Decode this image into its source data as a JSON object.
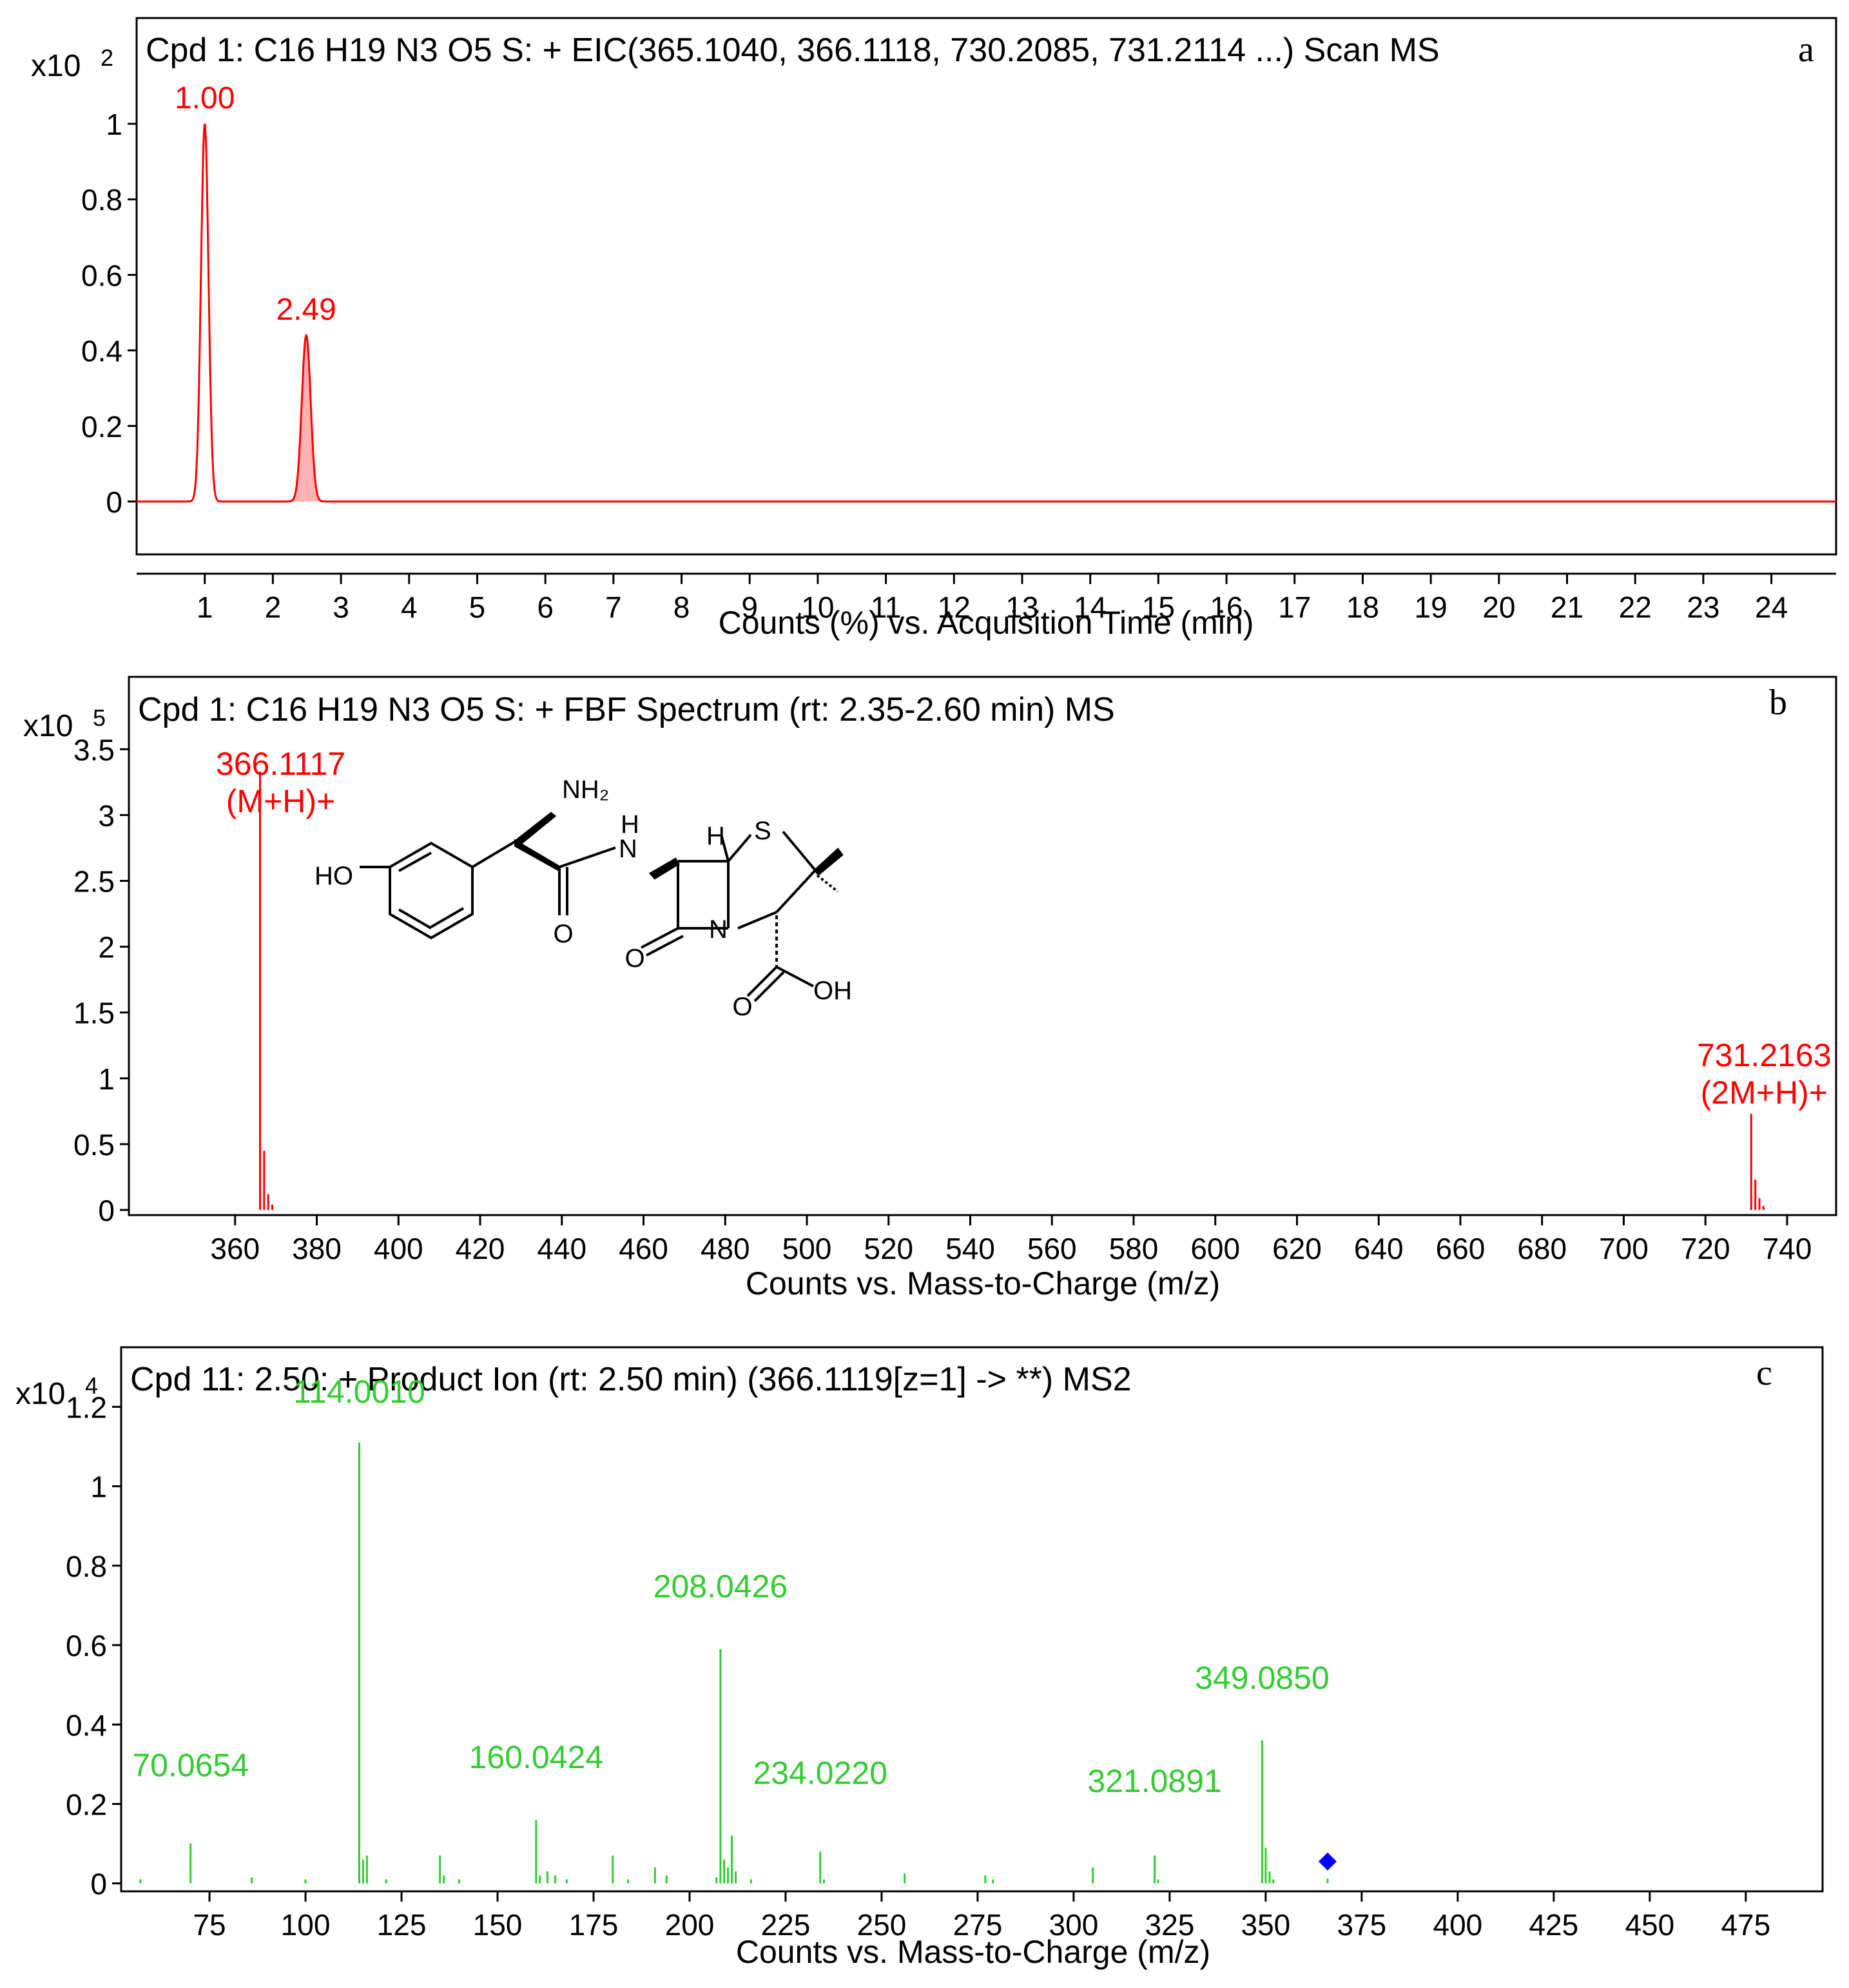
{
  "panels": [
    {
      "id": "a",
      "title": "Cpd 1: C16 H19 N3 O5 S: + EIC(365.1040, 366.1118, 730.2085, 731.2114 ...) Scan MS",
      "letter": "a",
      "multiplier": "x10",
      "multiplier_exp": "2",
      "xlabel": "Counts (%) vs. Acquisition Time (min)"
    },
    {
      "id": "b",
      "title": "Cpd 1: C16 H19 N3 O5 S: + FBF Spectrum (rt: 2.35-2.60 min) MS",
      "letter": "b",
      "multiplier": "x10",
      "multiplier_exp": "5",
      "xlabel": "Counts vs. Mass-to-Charge (m/z)",
      "structure_labels": {
        "nh2": "NH₂",
        "ho": "HO",
        "nh_n": "N",
        "nh_h": "H",
        "h": "H",
        "s": "S",
        "n": "N",
        "o1": "O",
        "o2": "O",
        "o3": "O",
        "oh": "OH"
      }
    },
    {
      "id": "c",
      "title": "Cpd 11: 2.50: + Product Ion (rt: 2.50 min) (366.1119[z=1] -> **) MS2",
      "letter": "c",
      "multiplier": "x10",
      "multiplier_exp": "4",
      "xlabel": "Counts vs. Mass-to-Charge (m/z)"
    }
  ],
  "colors": {
    "panel_a_trace": "#ff0000",
    "panel_b_trace": "#ff0000",
    "panel_c_trace": "#33cc33",
    "precursor_marker": "#0000ff",
    "axis": "#000000"
  },
  "chart_data": [
    {
      "type": "line",
      "title": "Cpd 1: C16 H19 N3 O5 S: + EIC(365.1040, 366.1118, 730.2085, 731.2114 ...) Scan MS",
      "xlabel": "Counts (%) vs. Acquisition Time (min)",
      "ylabel": "",
      "xlim": [
        0,
        24.95
      ],
      "ylim": [
        -0.14,
        1.28
      ],
      "xticks": [
        "1",
        "2",
        "3",
        "4",
        "5",
        "6",
        "7",
        "8",
        "9",
        "10",
        "11",
        "12",
        "13",
        "14",
        "15",
        "16",
        "17",
        "18",
        "19",
        "20",
        "21",
        "22",
        "23",
        "24"
      ],
      "yticks": [
        "0",
        "0.2",
        "0.4",
        "0.6",
        "0.8",
        "1"
      ],
      "peaks": [
        {
          "rt": 1.0,
          "height": 1.0,
          "width": 0.055,
          "label": "1.00",
          "filled": false
        },
        {
          "rt": 2.49,
          "height": 0.44,
          "width": 0.065,
          "label": "2.49",
          "filled": true
        }
      ],
      "grid": false
    },
    {
      "type": "bar",
      "title": "Cpd 1: C16 H19 N3 O5 S: + FBF Spectrum (rt: 2.35-2.60 min) MS",
      "xlabel": "Counts vs. Mass-to-Charge (m/z)",
      "ylabel": "",
      "xlim": [
        334,
        752
      ],
      "ylim": [
        0,
        4.05
      ],
      "xticks": [
        "360",
        "380",
        "400",
        "420",
        "440",
        "460",
        "480",
        "500",
        "520",
        "540",
        "560",
        "580",
        "600",
        "620",
        "640",
        "660",
        "680",
        "700",
        "720",
        "740"
      ],
      "yticks": [
        "0",
        "0.5",
        "1",
        "1.5",
        "2",
        "2.5",
        "3",
        "3.5"
      ],
      "peaks": [
        {
          "mz": 366.1117,
          "intensity": 3.33
        },
        {
          "mz": 367.11,
          "intensity": 0.45
        },
        {
          "mz": 368.11,
          "intensity": 0.12
        },
        {
          "mz": 369.11,
          "intensity": 0.04
        },
        {
          "mz": 731.2163,
          "intensity": 0.73
        },
        {
          "mz": 732.22,
          "intensity": 0.23
        },
        {
          "mz": 733.22,
          "intensity": 0.09
        },
        {
          "mz": 734.22,
          "intensity": 0.03
        }
      ],
      "annotations": [
        {
          "mz": 366.1117,
          "line1": "366.1117",
          "line2": "(M+H)+"
        },
        {
          "mz": 731.2163,
          "line1": "731.2163",
          "line2": "(2M+H)+"
        }
      ],
      "grid": false
    },
    {
      "type": "bar",
      "title": "Cpd 11: 2.50: + Product Ion (rt: 2.50 min) (366.1119[z=1] -> **) MS2",
      "xlabel": "Counts vs. Mass-to-Charge (m/z)",
      "ylabel": "",
      "xlim": [
        52,
        495
      ],
      "ylim": [
        -0.02,
        1.35
      ],
      "xticks": [
        "75",
        "100",
        "125",
        "150",
        "175",
        "200",
        "225",
        "250",
        "275",
        "300",
        "325",
        "350",
        "375",
        "400",
        "425",
        "450",
        "475"
      ],
      "yticks": [
        "0",
        "0.2",
        "0.4",
        "0.6",
        "0.8",
        "1",
        "1.2"
      ],
      "peaks": [
        {
          "mz": 57.0,
          "intensity": 0.01
        },
        {
          "mz": 70.0654,
          "intensity": 0.1
        },
        {
          "mz": 86.0,
          "intensity": 0.015
        },
        {
          "mz": 100.0,
          "intensity": 0.01
        },
        {
          "mz": 114.001,
          "intensity": 1.11
        },
        {
          "mz": 115.0,
          "intensity": 0.06
        },
        {
          "mz": 116.0,
          "intensity": 0.07
        },
        {
          "mz": 121.0,
          "intensity": 0.01
        },
        {
          "mz": 135.0,
          "intensity": 0.07
        },
        {
          "mz": 136.0,
          "intensity": 0.02
        },
        {
          "mz": 140.0,
          "intensity": 0.01
        },
        {
          "mz": 160.0424,
          "intensity": 0.16
        },
        {
          "mz": 161.0,
          "intensity": 0.02
        },
        {
          "mz": 163.0,
          "intensity": 0.03
        },
        {
          "mz": 165.0,
          "intensity": 0.02
        },
        {
          "mz": 168.0,
          "intensity": 0.01
        },
        {
          "mz": 180.0,
          "intensity": 0.07
        },
        {
          "mz": 184.0,
          "intensity": 0.01
        },
        {
          "mz": 191.0,
          "intensity": 0.04
        },
        {
          "mz": 194.0,
          "intensity": 0.02
        },
        {
          "mz": 207.0,
          "intensity": 0.015
        },
        {
          "mz": 208.0426,
          "intensity": 0.59
        },
        {
          "mz": 209.0,
          "intensity": 0.06
        },
        {
          "mz": 210.0,
          "intensity": 0.04
        },
        {
          "mz": 211.0,
          "intensity": 0.12
        },
        {
          "mz": 212.0,
          "intensity": 0.03
        },
        {
          "mz": 216.0,
          "intensity": 0.01
        },
        {
          "mz": 234.022,
          "intensity": 0.08
        },
        {
          "mz": 235.0,
          "intensity": 0.01
        },
        {
          "mz": 256.0,
          "intensity": 0.025
        },
        {
          "mz": 277.0,
          "intensity": 0.02
        },
        {
          "mz": 279.0,
          "intensity": 0.01
        },
        {
          "mz": 305.0,
          "intensity": 0.04
        },
        {
          "mz": 321.0891,
          "intensity": 0.07
        },
        {
          "mz": 322.0,
          "intensity": 0.01
        },
        {
          "mz": 349.085,
          "intensity": 0.36
        },
        {
          "mz": 350.0,
          "intensity": 0.09
        },
        {
          "mz": 351.0,
          "intensity": 0.03
        },
        {
          "mz": 352.0,
          "intensity": 0.01
        },
        {
          "mz": 366.1,
          "intensity": 0.012
        }
      ],
      "annotations": [
        {
          "mz": 70.0654,
          "label": "70.0654",
          "label_y": 0.27
        },
        {
          "mz": 114.001,
          "label": "114.0010",
          "label_y": 1.21
        },
        {
          "mz": 160.0424,
          "label": "160.0424",
          "label_y": 0.29
        },
        {
          "mz": 208.0426,
          "label": "208.0426",
          "label_y": 0.72
        },
        {
          "mz": 234.022,
          "label": "234.0220",
          "label_y": 0.25
        },
        {
          "mz": 321.0891,
          "label": "321.0891",
          "label_y": 0.23
        },
        {
          "mz": 349.085,
          "label": "349.0850",
          "label_y": 0.49
        }
      ],
      "precursor": {
        "mz": 366.1119,
        "intensity": 0.055
      },
      "grid": false
    }
  ]
}
